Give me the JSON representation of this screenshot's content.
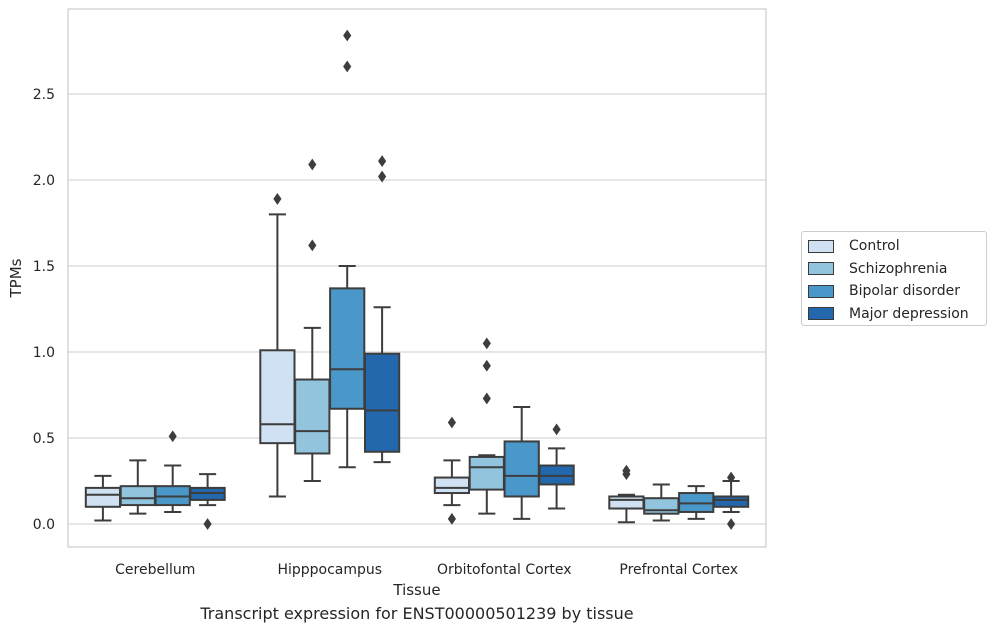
{
  "caption": "Transcript expression for ENST00000501239 by tissue",
  "chart_data": {
    "type": "box",
    "title": "",
    "xlabel": "Tissue",
    "ylabel": "TPMs",
    "ylim": [
      -0.14,
      3.0
    ],
    "yticks": [
      0.0,
      0.5,
      1.0,
      1.5,
      2.0,
      2.5
    ],
    "ytick_labels": [
      "0.0",
      "0.5",
      "1.0",
      "1.5",
      "2.0",
      "2.5"
    ],
    "grid": "horizontal",
    "legend_position": "right",
    "categories": [
      "Cerebellum",
      "Hipppocampus",
      "Orbitofontal Cortex",
      "Prefrontal Cortex"
    ],
    "series": [
      {
        "name": "Control",
        "color": "#cfe1f2",
        "boxes": [
          {
            "whisker_low": 0.02,
            "q1": 0.1,
            "median": 0.17,
            "q3": 0.21,
            "whisker_high": 0.28,
            "outliers": []
          },
          {
            "whisker_low": 0.16,
            "q1": 0.47,
            "median": 0.58,
            "q3": 1.01,
            "whisker_high": 1.8,
            "outliers": [
              1.89
            ]
          },
          {
            "whisker_low": 0.11,
            "q1": 0.18,
            "median": 0.21,
            "q3": 0.27,
            "whisker_high": 0.37,
            "outliers": [
              0.03,
              0.59
            ]
          },
          {
            "whisker_low": 0.01,
            "q1": 0.09,
            "median": 0.14,
            "q3": 0.16,
            "whisker_high": 0.17,
            "outliers": [
              0.29,
              0.31
            ]
          }
        ]
      },
      {
        "name": "Schizophrenia",
        "color": "#93c4de",
        "boxes": [
          {
            "whisker_low": 0.06,
            "q1": 0.11,
            "median": 0.15,
            "q3": 0.22,
            "whisker_high": 0.37,
            "outliers": []
          },
          {
            "whisker_low": 0.25,
            "q1": 0.41,
            "median": 0.54,
            "q3": 0.84,
            "whisker_high": 1.14,
            "outliers": [
              1.62,
              2.09
            ]
          },
          {
            "whisker_low": 0.06,
            "q1": 0.2,
            "median": 0.33,
            "q3": 0.39,
            "whisker_high": 0.4,
            "outliers": [
              0.73,
              0.92,
              1.05
            ]
          },
          {
            "whisker_low": 0.02,
            "q1": 0.06,
            "median": 0.08,
            "q3": 0.15,
            "whisker_high": 0.23,
            "outliers": []
          }
        ]
      },
      {
        "name": "Bipolar disorder",
        "color": "#4a98c9",
        "boxes": [
          {
            "whisker_low": 0.07,
            "q1": 0.11,
            "median": 0.16,
            "q3": 0.22,
            "whisker_high": 0.34,
            "outliers": [
              0.51
            ]
          },
          {
            "whisker_low": 0.33,
            "q1": 0.67,
            "median": 0.9,
            "q3": 1.37,
            "whisker_high": 1.5,
            "outliers": [
              2.66,
              2.84
            ]
          },
          {
            "whisker_low": 0.03,
            "q1": 0.16,
            "median": 0.28,
            "q3": 0.48,
            "whisker_high": 0.68,
            "outliers": []
          },
          {
            "whisker_low": 0.03,
            "q1": 0.07,
            "median": 0.12,
            "q3": 0.18,
            "whisker_high": 0.22,
            "outliers": []
          }
        ]
      },
      {
        "name": "Major depression",
        "color": "#2368ad",
        "boxes": [
          {
            "whisker_low": 0.11,
            "q1": 0.14,
            "median": 0.18,
            "q3": 0.21,
            "whisker_high": 0.29,
            "outliers": [
              0.0
            ]
          },
          {
            "whisker_low": 0.36,
            "q1": 0.42,
            "median": 0.66,
            "q3": 0.99,
            "whisker_high": 1.26,
            "outliers": [
              2.02,
              2.11
            ]
          },
          {
            "whisker_low": 0.09,
            "q1": 0.23,
            "median": 0.28,
            "q3": 0.34,
            "whisker_high": 0.44,
            "outliers": [
              0.55
            ]
          },
          {
            "whisker_low": 0.07,
            "q1": 0.1,
            "median": 0.14,
            "q3": 0.16,
            "whisker_high": 0.25,
            "outliers": [
              0.0,
              0.27
            ]
          }
        ]
      }
    ]
  }
}
